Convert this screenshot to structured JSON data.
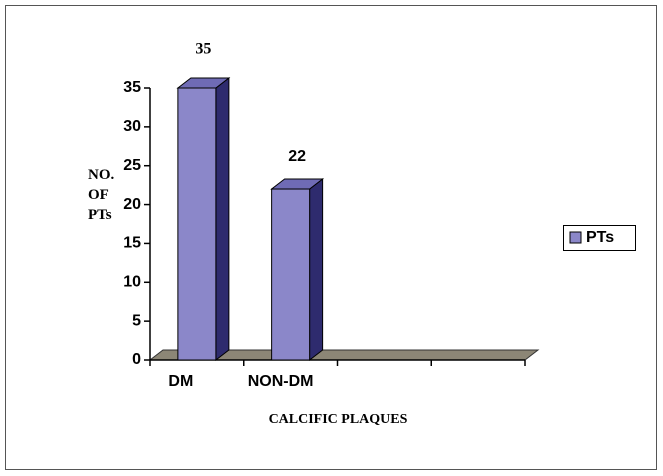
{
  "chart_data": {
    "type": "bar3d",
    "xlabel": "CALCIFIC PLAQUES",
    "ylabel": "NO. OF PTs",
    "categories": [
      "DM",
      "NON-DM",
      null,
      null
    ],
    "series": [
      {
        "name": "PTs",
        "color": "#8b87c9",
        "values": [
          35,
          22,
          null,
          null
        ]
      }
    ],
    "ylim": [
      0,
      35
    ],
    "yticks": [
      0,
      5,
      10,
      15,
      20,
      25,
      30,
      35
    ],
    "legend": "right"
  }
}
